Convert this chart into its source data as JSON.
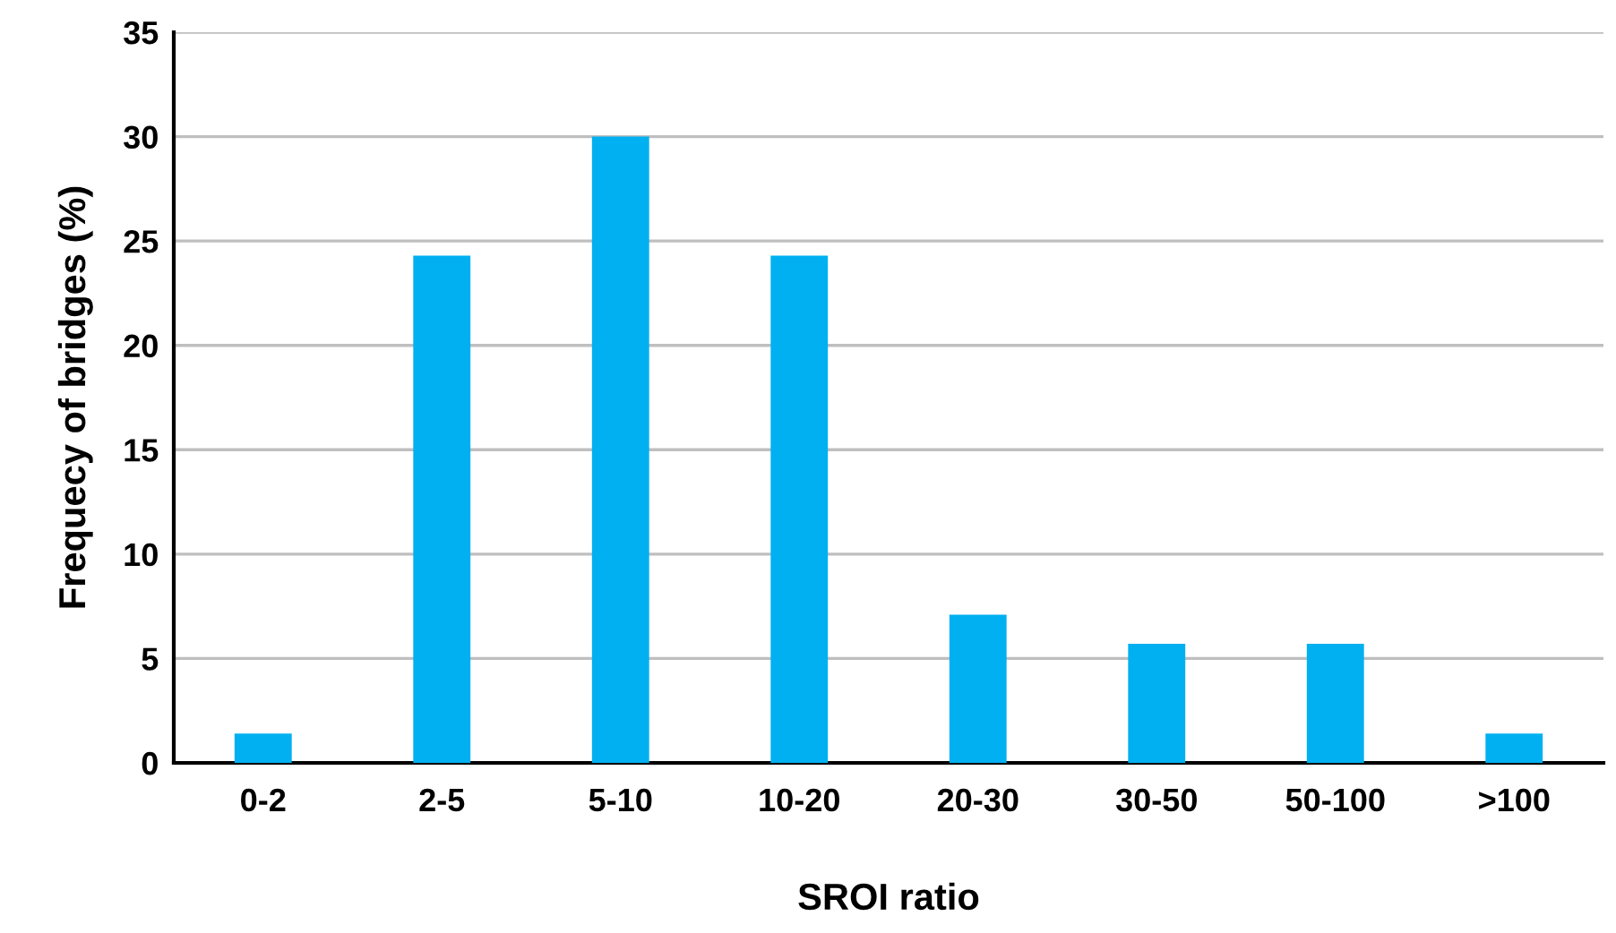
{
  "chart_data": {
    "type": "bar",
    "xlabel": "SROI ratio",
    "ylabel": "Frequecy of bridges (%)",
    "categories": [
      "0-2",
      "2-5",
      "5-10",
      "10-20",
      "20-30",
      "30-50",
      "50-100",
      ">100"
    ],
    "values": [
      1.4,
      24.3,
      30,
      24.3,
      7.1,
      5.7,
      5.7,
      1.4
    ],
    "color": "#00b0f0",
    "ylim": [
      0,
      35
    ],
    "yticks": [
      0,
      5,
      10,
      15,
      20,
      25,
      30,
      35
    ],
    "grid": "y",
    "legend": false
  }
}
